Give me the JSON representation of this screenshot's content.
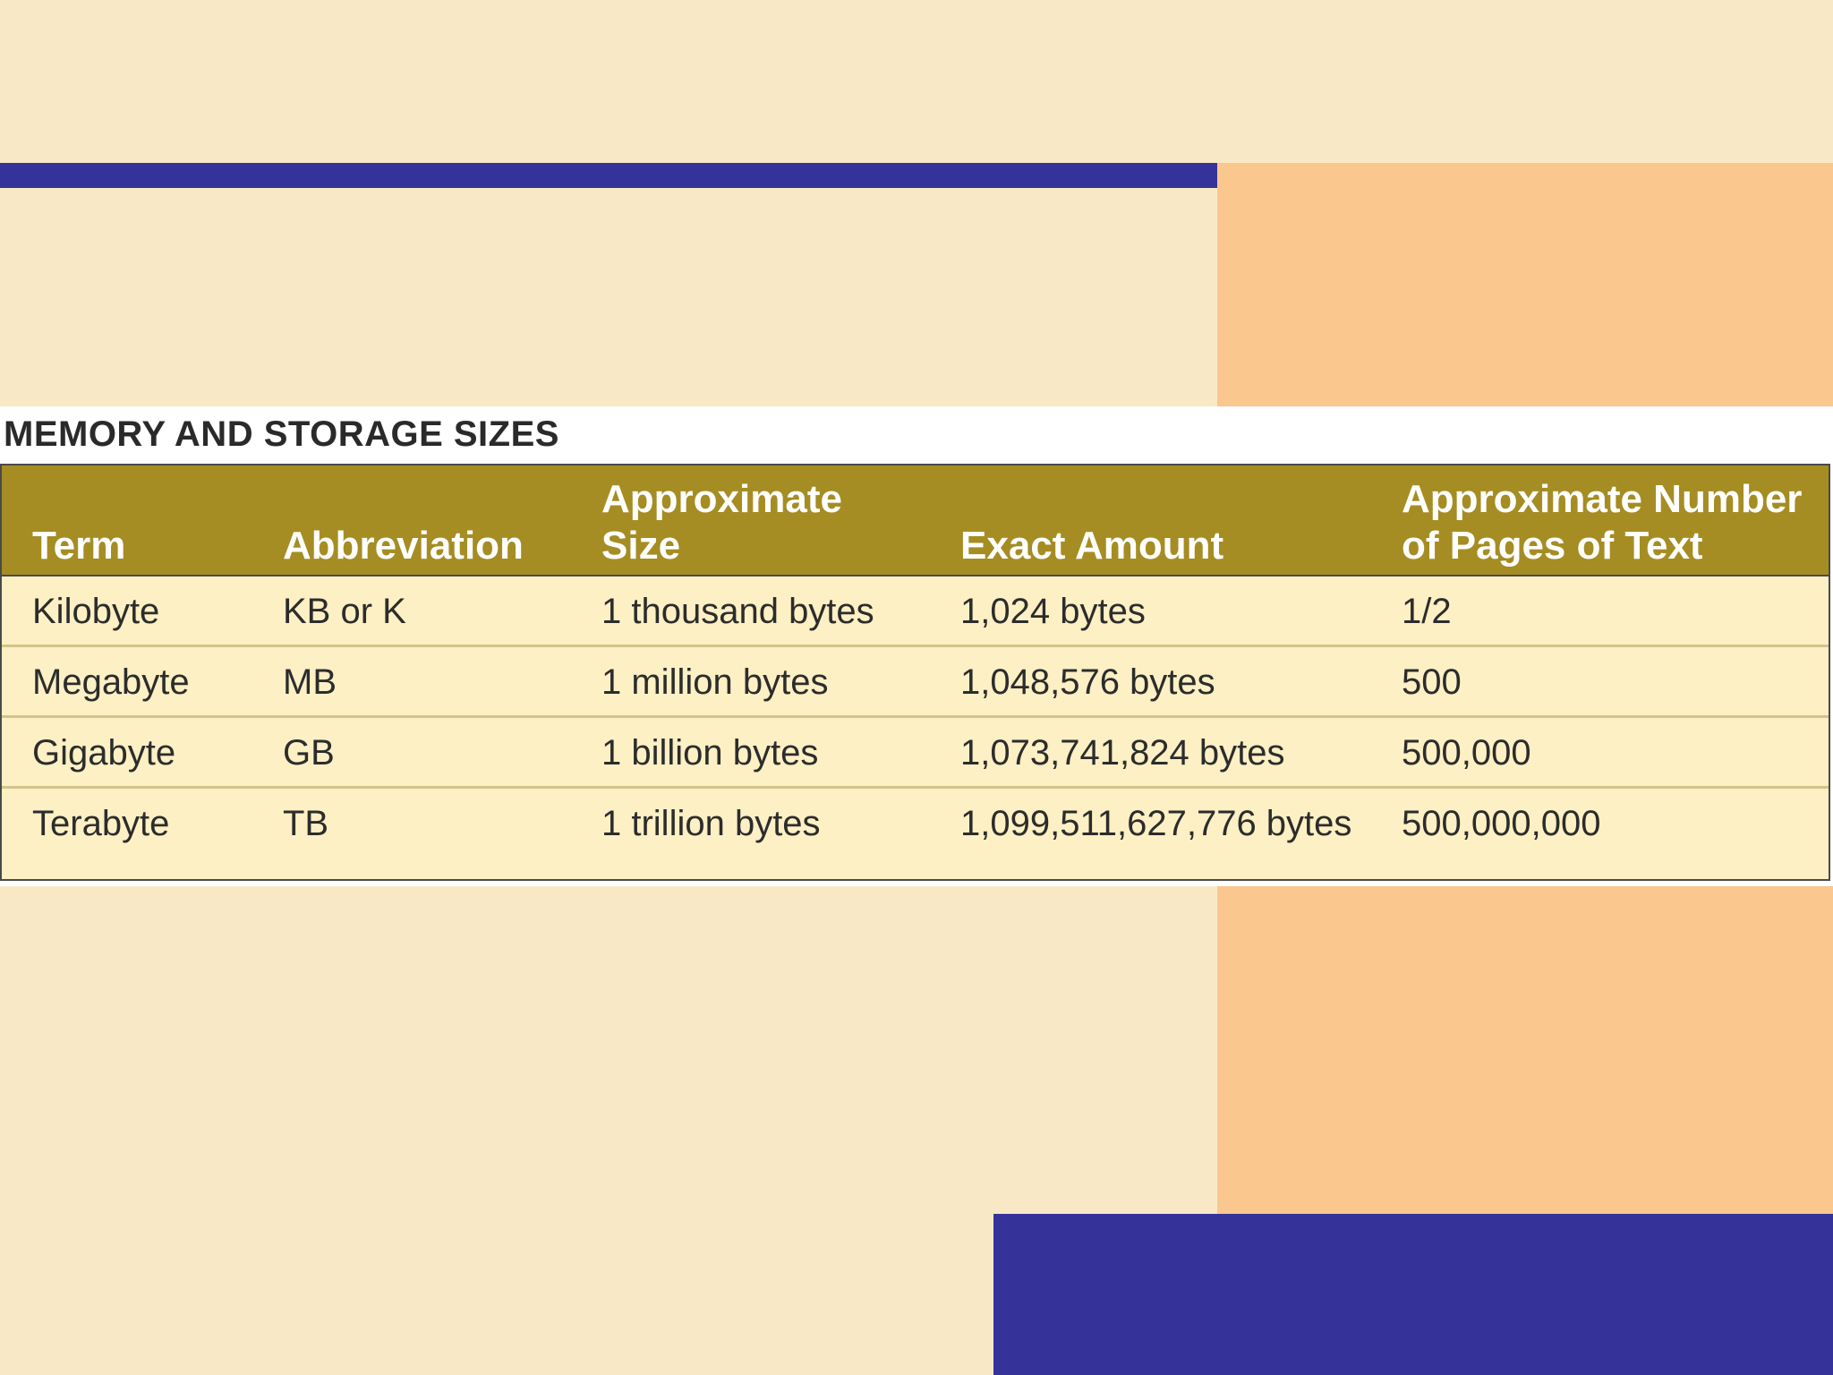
{
  "colors": {
    "background": "#f9e8c6",
    "accent_blue": "#353399",
    "accent_orange": "#fac78f",
    "header_olive": "#a58d23",
    "table_body": "#fcf0c4"
  },
  "figure": {
    "title": "MEMORY AND STORAGE SIZES"
  },
  "table": {
    "headers": [
      [
        "Term"
      ],
      [
        "Abbreviation"
      ],
      [
        "Approximate",
        "Size"
      ],
      [
        "Exact Amount"
      ],
      [
        "Approximate Number",
        "of Pages of Text"
      ]
    ],
    "rows": [
      [
        "Kilobyte",
        "KB or K",
        "1 thousand bytes",
        "1,024 bytes",
        "1/2"
      ],
      [
        "Megabyte",
        "MB",
        "1 million bytes",
        "1,048,576 bytes",
        "500"
      ],
      [
        "Gigabyte",
        "GB",
        "1 billion bytes",
        "1,073,741,824 bytes",
        "500,000"
      ],
      [
        "Terabyte",
        "TB",
        "1 trillion bytes",
        "1,099,511,627,776 bytes",
        "500,000,000"
      ]
    ]
  }
}
